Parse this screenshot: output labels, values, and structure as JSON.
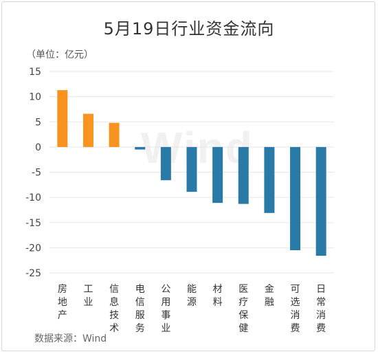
{
  "chart_data": {
    "type": "bar",
    "title": "5月19日行业资金流向",
    "unit_label": "（单位：亿元）",
    "source": "数据来源：Wind",
    "watermark": "Wind",
    "categories": [
      "房地产",
      "工业",
      "信息技术",
      "电信服务",
      "公用事业",
      "能源",
      "材料",
      "医疗保健",
      "金融",
      "可选消费",
      "日常消费"
    ],
    "values": [
      11.3,
      6.6,
      4.8,
      -0.5,
      -6.6,
      -8.9,
      -11.1,
      -11.3,
      -13.1,
      -20.5,
      -21.6
    ],
    "ylim": [
      -25,
      15
    ],
    "yticks": [
      15,
      10,
      5,
      0,
      -5,
      -10,
      -15,
      -20,
      -25
    ],
    "xlabel": "",
    "ylabel": "",
    "grid": true,
    "colors": {
      "positive": "#f7931e",
      "negative": "#2a7aa8",
      "grid": "#e6e6e6"
    }
  }
}
